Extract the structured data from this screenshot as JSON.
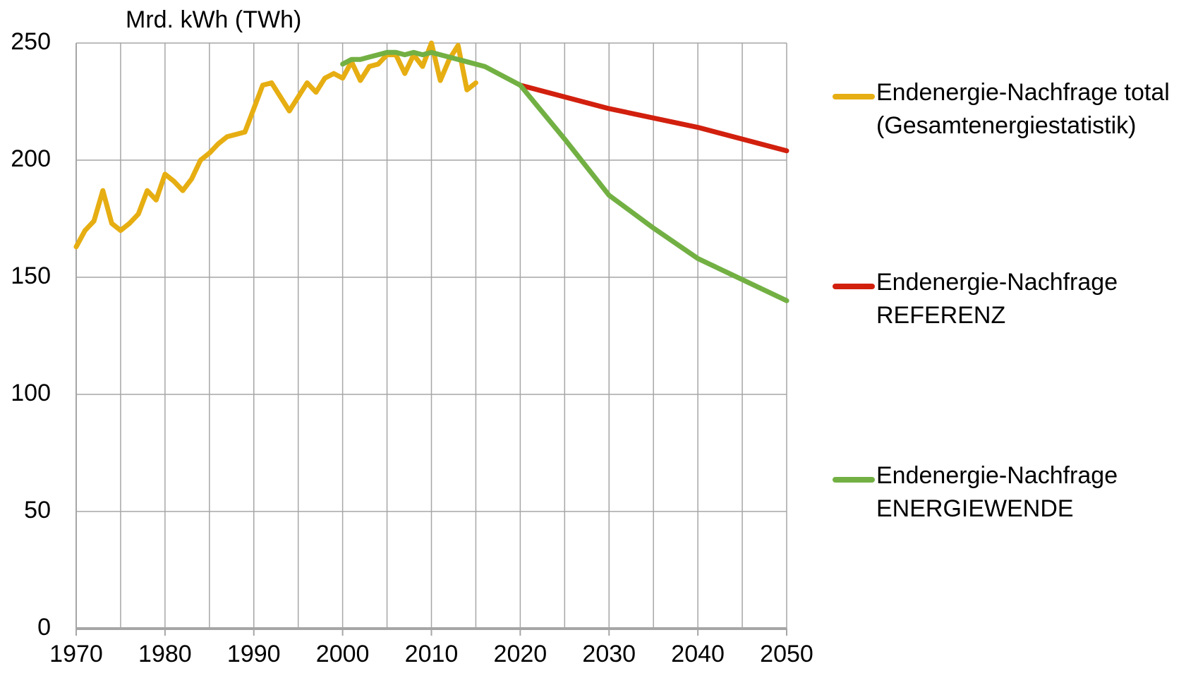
{
  "chart_data": {
    "type": "line",
    "y_label": "Mrd. kWh (TWh)",
    "xlim": [
      1970,
      2050
    ],
    "xticks": [
      1970,
      1980,
      1990,
      2000,
      2010,
      2020,
      2030,
      2040,
      2050
    ],
    "ylim": [
      0,
      250
    ],
    "yticks": [
      0,
      50,
      100,
      150,
      200,
      250
    ],
    "grid": true,
    "legend": "right",
    "series": [
      {
        "name": "Endenergie-Nachfrage total\n(Gesamtenergiestatistik)",
        "color": "#e6ae12",
        "x": [
          1970,
          1971,
          1972,
          1973,
          1974,
          1975,
          1976,
          1977,
          1978,
          1979,
          1980,
          1981,
          1982,
          1983,
          1984,
          1985,
          1986,
          1987,
          1988,
          1989,
          1990,
          1991,
          1992,
          1993,
          1994,
          1995,
          1996,
          1997,
          1998,
          1999,
          2000,
          2001,
          2002,
          2003,
          2004,
          2005,
          2006,
          2007,
          2008,
          2009,
          2010,
          2011,
          2012,
          2013,
          2014,
          2015
        ],
        "values": [
          163,
          170,
          174,
          187,
          173,
          170,
          173,
          177,
          187,
          183,
          194,
          191,
          187,
          192,
          200,
          203,
          207,
          210,
          211,
          212,
          222,
          232,
          233,
          227,
          221,
          227,
          233,
          229,
          235,
          237,
          235,
          242,
          234,
          240,
          241,
          245,
          245,
          237,
          245,
          240,
          250,
          234,
          243,
          249,
          230,
          233
        ]
      },
      {
        "name": "Endenergie-Nachfrage\nREFERENZ",
        "color": "#d2200e",
        "x": [
          2020,
          2030,
          2040,
          2050
        ],
        "values": [
          232,
          222,
          214,
          204
        ]
      },
      {
        "name": "Endenergie-Nachfrage\nENERGIEWENDE",
        "color": "#72b043",
        "x": [
          2000,
          2001,
          2002,
          2003,
          2004,
          2005,
          2006,
          2007,
          2008,
          2009,
          2010,
          2011,
          2012,
          2013,
          2014,
          2015,
          2016,
          2020,
          2025,
          2030,
          2035,
          2040,
          2045,
          2050
        ],
        "values": [
          241,
          243,
          243,
          244,
          245,
          246,
          246,
          245,
          246,
          245,
          246,
          245,
          244,
          243,
          242,
          241,
          240,
          232,
          209,
          185,
          171,
          158,
          149,
          140
        ]
      }
    ]
  }
}
